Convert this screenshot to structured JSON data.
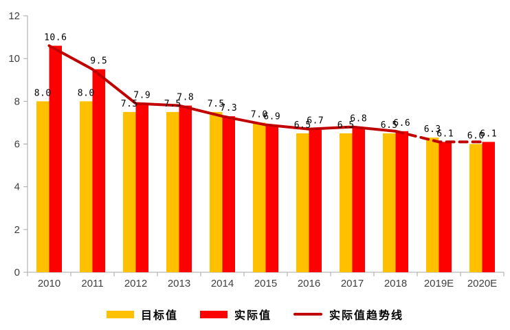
{
  "chart_data": {
    "type": "bar",
    "title": "",
    "xlabel": "",
    "ylabel": "",
    "categories": [
      "2010",
      "2011",
      "2012",
      "2013",
      "2014",
      "2015",
      "2016",
      "2017",
      "2018",
      "2019E",
      "2020E"
    ],
    "series": [
      {
        "key": "target",
        "name": "目标值",
        "type": "bar",
        "color": "#FFC000",
        "values": [
          8.0,
          8.0,
          7.5,
          7.5,
          7.5,
          7.0,
          6.5,
          6.5,
          6.5,
          6.3,
          6.0
        ]
      },
      {
        "key": "actual",
        "name": "实际值",
        "type": "bar",
        "color": "#FF0000",
        "values": [
          10.6,
          9.5,
          7.9,
          7.8,
          7.3,
          6.9,
          6.7,
          6.8,
          6.6,
          6.1,
          6.1
        ]
      },
      {
        "key": "trend",
        "name": "实际值趋势线",
        "type": "line",
        "color": "#C00000",
        "values": [
          10.6,
          9.5,
          7.9,
          7.8,
          7.3,
          6.9,
          6.7,
          6.8,
          6.6,
          6.1,
          6.1
        ],
        "solid_until_index": 8,
        "dash": "11 8"
      }
    ],
    "ylim": [
      0,
      12
    ],
    "yticks": [
      0,
      2,
      4,
      6,
      8,
      10,
      12
    ],
    "grid": false,
    "legend_position": "bottom",
    "value_labels": true,
    "value_label_decimals": 1
  },
  "colors": {
    "axis": "#A6A6A6",
    "tick_text": "#404040",
    "value_label_text": "#000000",
    "background": "#FFFFFF"
  }
}
